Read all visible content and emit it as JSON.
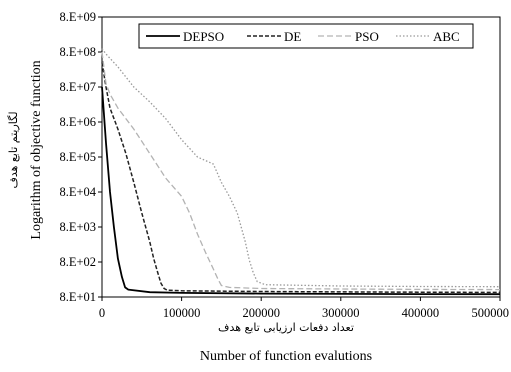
{
  "chart_data": {
    "type": "line",
    "title": "",
    "xlabel_fa": "تعداد دفعات ارزیابی تابع هدف",
    "xlabel": "Number of function evalutions",
    "ylabel_fa": "لگاریتم تابع هدف",
    "ylabel": "Logarithm of objective function",
    "y_scale": "log",
    "xlim": [
      0,
      500000
    ],
    "ylim": [
      80,
      8000000000
    ],
    "x_tick_labels": [
      "0",
      "100000",
      "200000",
      "300000",
      "400000",
      "500000"
    ],
    "y_tick_labels": [
      "8.E+01",
      "8.E+02",
      "8.E+03",
      "8.E+04",
      "8.E+05",
      "8.E+06",
      "8.E+07",
      "8.E+08",
      "8.E+09"
    ],
    "grid": false,
    "legend_position": "top",
    "series": [
      {
        "name": "DEPSO",
        "color": "#000000",
        "style": "solid",
        "x": [
          0,
          5000,
          10000,
          15000,
          20000,
          25000,
          29000,
          33000,
          60000,
          100000,
          200000,
          300000,
          400000,
          500000
        ],
        "y": [
          80000000,
          2000000,
          80000,
          8000,
          1000,
          300,
          150,
          130,
          110,
          105,
          100,
          98,
          97,
          96
        ]
      },
      {
        "name": "DE",
        "color": "#222222",
        "style": "dashed",
        "x": [
          0,
          5000,
          10000,
          20000,
          30000,
          40000,
          50000,
          60000,
          65000,
          70000,
          74000,
          78000,
          82000,
          100000,
          200000,
          300000,
          400000,
          500000
        ],
        "y": [
          400000000,
          80000000,
          20000000,
          5000000,
          1000000,
          150000,
          20000,
          3000,
          1000,
          400,
          200,
          140,
          125,
          120,
          115,
          112,
          110,
          108
        ]
      },
      {
        "name": "PSO",
        "color": "#b3b3b3",
        "style": "dashed",
        "x": [
          0,
          5000,
          10000,
          20000,
          40000,
          60000,
          80000,
          100000,
          110000,
          120000,
          130000,
          140000,
          146000,
          150000,
          160000,
          200000,
          300000,
          400000,
          500000
        ],
        "y": [
          800000000,
          100000000,
          50000000,
          20000000,
          5000000,
          1000000,
          200000,
          60000,
          20000,
          5000,
          1500,
          500,
          250,
          170,
          150,
          140,
          135,
          132,
          130
        ]
      },
      {
        "name": "ABC",
        "color": "#9a9a9a",
        "style": "dotted",
        "x": [
          0,
          5000,
          20000,
          40000,
          60000,
          80000,
          100000,
          120000,
          140000,
          150000,
          160000,
          170000,
          180000,
          185000,
          190000,
          195000,
          205000,
          300000,
          400000,
          500000
        ],
        "y": [
          1000000000,
          700000000,
          300000000,
          80000000,
          30000000,
          10000000,
          2500000,
          800000,
          500000,
          150000,
          60000,
          20000,
          3000,
          900,
          400,
          220,
          180,
          165,
          160,
          158
        ]
      }
    ]
  }
}
